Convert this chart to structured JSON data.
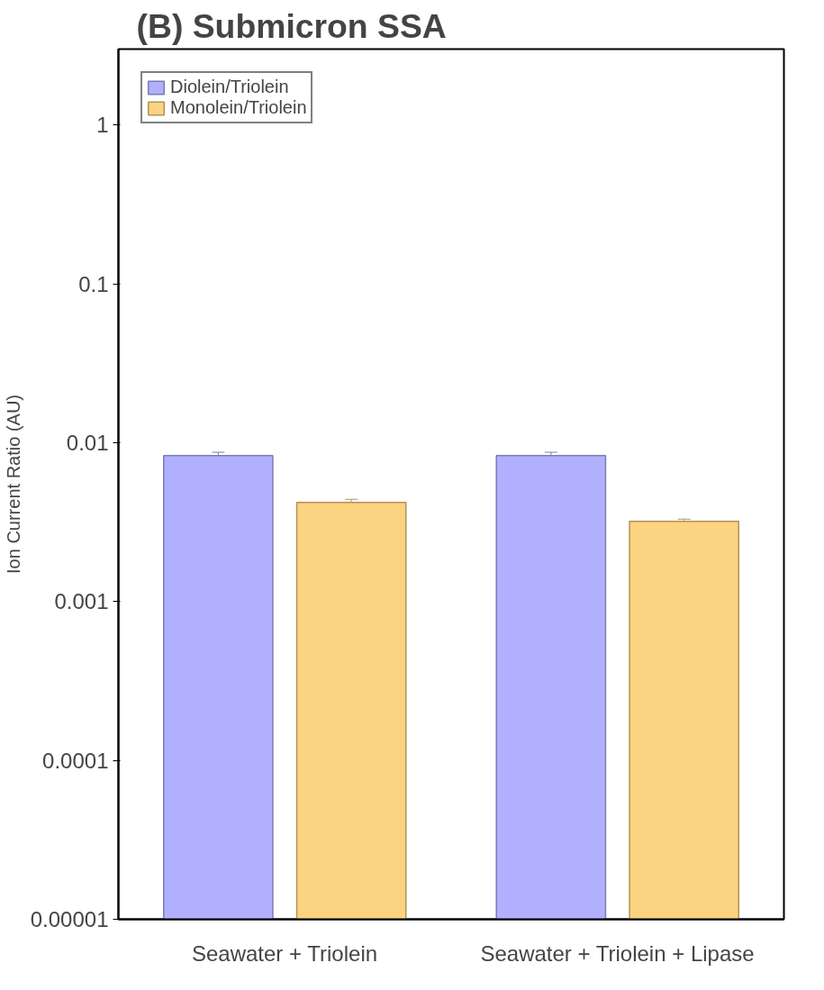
{
  "chart_data": {
    "type": "bar",
    "title": "(B) Submicron SSA",
    "ylabel": "Ion Current Ratio (AU)",
    "categories": [
      "Seawater + Triolein",
      "Seawater + Triolein + Lipase"
    ],
    "series": [
      {
        "name": "Diolein/Triolein",
        "color": "#b0b0ff",
        "values": [
          0.0083,
          0.0083
        ],
        "errors": [
          0.0004,
          0.0004
        ]
      },
      {
        "name": "Monolein/Triolein",
        "color": "#fcd380",
        "values": [
          0.0042,
          0.0032
        ],
        "errors": [
          0.0002,
          0.0001
        ]
      }
    ],
    "log": true,
    "ylim": [
      1e-05,
      3
    ],
    "yticks": [
      {
        "value": 1e-05,
        "label": "0.00001"
      },
      {
        "value": 0.0001,
        "label": "0.0001"
      },
      {
        "value": 0.001,
        "label": "0.001"
      },
      {
        "value": 0.01,
        "label": "0.01"
      },
      {
        "value": 0.1,
        "label": "0.1"
      },
      {
        "value": 1,
        "label": "1"
      }
    ],
    "legend": "top left",
    "grid": false
  }
}
